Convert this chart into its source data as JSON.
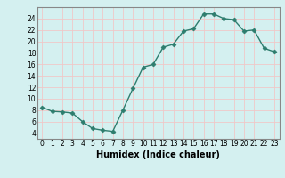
{
  "x": [
    0,
    1,
    2,
    3,
    4,
    5,
    6,
    7,
    8,
    9,
    10,
    11,
    12,
    13,
    14,
    15,
    16,
    17,
    18,
    19,
    20,
    21,
    22,
    23
  ],
  "y": [
    8.5,
    7.8,
    7.7,
    7.5,
    6.0,
    4.8,
    4.5,
    4.3,
    8.0,
    11.8,
    15.5,
    16.0,
    19.0,
    19.5,
    21.8,
    22.2,
    24.8,
    24.8,
    24.0,
    23.8,
    21.8,
    22.0,
    18.8,
    18.2
  ],
  "xlabel": "Humidex (Indice chaleur)",
  "ylim": [
    3,
    26
  ],
  "xlim": [
    -0.5,
    23.5
  ],
  "yticks": [
    4,
    6,
    8,
    10,
    12,
    14,
    16,
    18,
    20,
    22,
    24
  ],
  "xticks": [
    0,
    1,
    2,
    3,
    4,
    5,
    6,
    7,
    8,
    9,
    10,
    11,
    12,
    13,
    14,
    15,
    16,
    17,
    18,
    19,
    20,
    21,
    22,
    23
  ],
  "line_color": "#2e7d6e",
  "marker": "D",
  "marker_size": 2.5,
  "bg_color": "#d4f0f0",
  "grid_color": "#f0c8c8",
  "axes_color": "#888888",
  "tick_fontsize": 5.5,
  "xlabel_fontsize": 7
}
